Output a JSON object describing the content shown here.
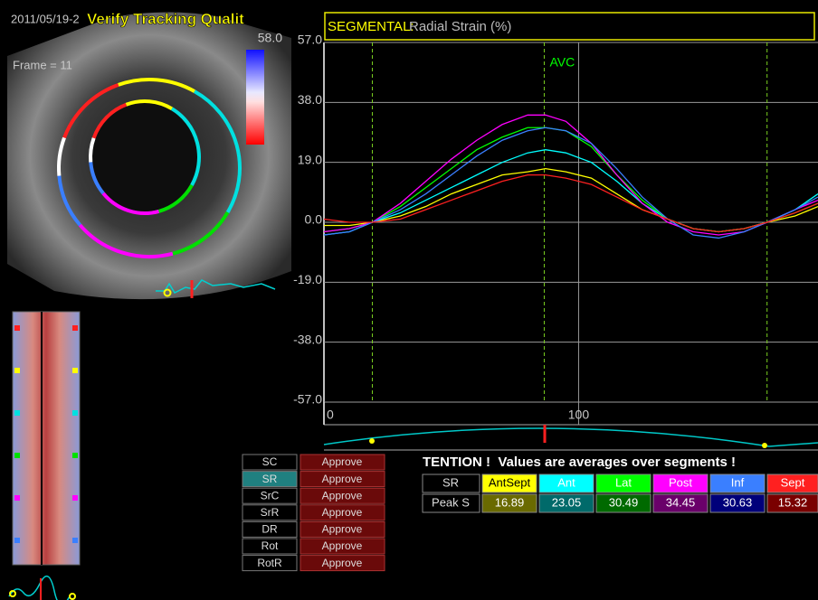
{
  "ui": {
    "timestamp": "2011/05/19-2",
    "banner": "Verify Tracking Qualit",
    "frame": "Frame = 11",
    "scale_max": "58.0",
    "modes": [
      {
        "label": "SC",
        "action": "Approve"
      },
      {
        "label": "SR",
        "action": "Approve"
      },
      {
        "label": "SrC",
        "action": "Approve"
      },
      {
        "label": "SrR",
        "action": "Approve"
      },
      {
        "label": "DR",
        "action": "Approve"
      },
      {
        "label": "Rot",
        "action": "Approve"
      },
      {
        "label": "RotR",
        "action": "Approve"
      }
    ],
    "table": {
      "notice": "TENTION !  Values are averages over segments !",
      "corner": "SR",
      "row_label": "Peak S",
      "values": [
        16.89,
        23.05,
        30.49,
        34.45,
        30.63,
        15.32
      ]
    }
  },
  "chart_data": {
    "type": "line",
    "title": "SEGMENTAL:",
    "subtitle": "Radial Strain (%)",
    "x": [
      0,
      10,
      19,
      30,
      40,
      50,
      60,
      70,
      80,
      87,
      95,
      105,
      115,
      125,
      135,
      145,
      155,
      165,
      174,
      185,
      194
    ],
    "xlim": [
      0,
      194
    ],
    "xticks": [
      0,
      100
    ],
    "ylim": [
      -57,
      57
    ],
    "yticks": [
      {
        "value": 57,
        "label": "57.0"
      },
      {
        "value": 38,
        "label": "38.0"
      },
      {
        "value": 19,
        "label": "19.0"
      },
      {
        "value": 0,
        "label": "0.0"
      },
      {
        "value": -19,
        "label": "-19.0"
      },
      {
        "value": -38,
        "label": "-38.0"
      },
      {
        "value": -57,
        "label": "-57.0"
      }
    ],
    "event_lines": [
      19,
      86.5,
      174
    ],
    "annotation": "AVC",
    "series": [
      {
        "name": "AntSept",
        "color": "#ffff00",
        "values": [
          -1,
          -1,
          0,
          2,
          5,
          9,
          12,
          15,
          16,
          17,
          16,
          14,
          9,
          4,
          1,
          -2,
          -3,
          -2,
          0,
          2,
          5
        ]
      },
      {
        "name": "Ant",
        "color": "#00ffff",
        "values": [
          -4,
          -3,
          0,
          3,
          7,
          11,
          15,
          19,
          22,
          23,
          22,
          19,
          13,
          6,
          1,
          -2,
          -3,
          -2,
          0,
          4,
          9
        ]
      },
      {
        "name": "Lat",
        "color": "#00ff00",
        "values": [
          -3,
          -2,
          0,
          5,
          11,
          17,
          23,
          27,
          30,
          30,
          29,
          24,
          15,
          7,
          1,
          -2,
          -3,
          -2,
          0,
          3,
          6
        ]
      },
      {
        "name": "Post",
        "color": "#ff00ff",
        "values": [
          -3,
          -2,
          0,
          6,
          13,
          20,
          26,
          31,
          34,
          34,
          32,
          25,
          15,
          6,
          0,
          -3,
          -4,
          -3,
          0,
          4,
          7
        ]
      },
      {
        "name": "Inf",
        "color": "#3a7fff",
        "values": [
          -4,
          -3,
          0,
          4,
          9,
          15,
          21,
          26,
          29,
          30,
          29,
          25,
          17,
          8,
          1,
          -4,
          -5,
          -3,
          0,
          4,
          8
        ]
      },
      {
        "name": "Sept",
        "color": "#ff2020",
        "values": [
          1,
          0,
          0,
          1,
          4,
          7,
          10,
          13,
          15,
          15,
          14,
          12,
          8,
          4,
          1,
          -2,
          -3,
          -2,
          0,
          3,
          6
        ]
      }
    ]
  }
}
